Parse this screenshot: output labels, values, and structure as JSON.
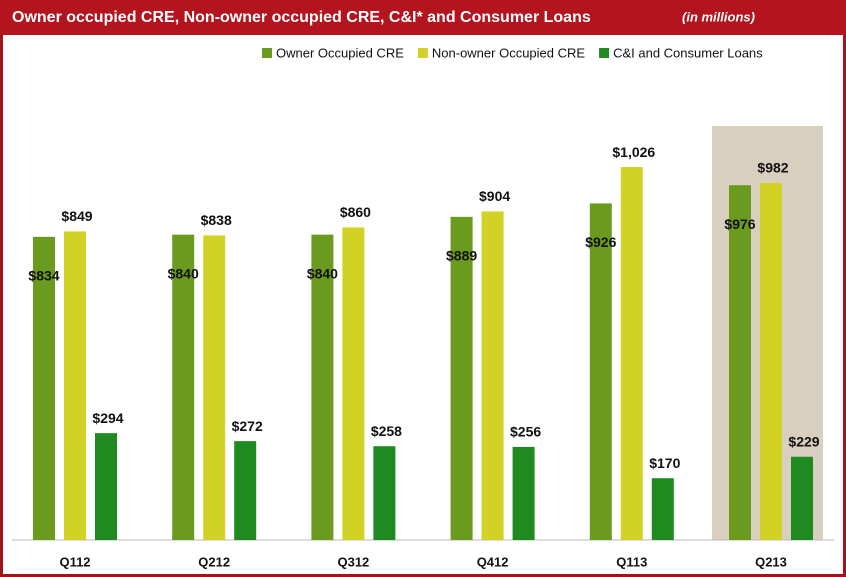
{
  "chart_data": {
    "type": "bar",
    "title": "Owner occupied CRE, Non-owner occupied CRE, C&I* and Consumer  Loans",
    "subtitle": "(in millions)",
    "categories": [
      "Q112",
      "Q212",
      "Q312",
      "Q412",
      "Q113",
      "Q213"
    ],
    "series": [
      {
        "name": "Owner Occupied CRE",
        "color": "#6b9b1e",
        "values": [
          834,
          840,
          840,
          889,
          926,
          976
        ],
        "value_labels": [
          "$834",
          "$840",
          "$840",
          "$889",
          "$926",
          "$976"
        ]
      },
      {
        "name": "Non-owner Occupied CRE",
        "color": "#d2d226",
        "values": [
          849,
          838,
          860,
          904,
          1026,
          982
        ],
        "value_labels": [
          "$849",
          "$838",
          "$860",
          "$904",
          "$1,026",
          "$982"
        ]
      },
      {
        "name": "C&I and Consumer Loans",
        "color": "#1f8a1f",
        "values": [
          294,
          272,
          258,
          256,
          170,
          229
        ],
        "value_labels": [
          "$294",
          "$272",
          "$258",
          "$256",
          "$170",
          "$229"
        ]
      }
    ],
    "legend": "top-right"
  }
}
